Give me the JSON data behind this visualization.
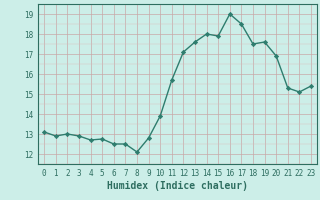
{
  "x": [
    0,
    1,
    2,
    3,
    4,
    5,
    6,
    7,
    8,
    9,
    10,
    11,
    12,
    13,
    14,
    15,
    16,
    17,
    18,
    19,
    20,
    21,
    22,
    23
  ],
  "y": [
    13.1,
    12.9,
    13.0,
    12.9,
    12.7,
    12.75,
    12.5,
    12.5,
    12.1,
    12.8,
    13.9,
    15.7,
    17.1,
    17.6,
    18.0,
    17.9,
    19.0,
    18.5,
    17.5,
    17.6,
    16.9,
    15.3,
    15.1,
    15.4
  ],
  "line_color": "#2e7d6e",
  "marker": "D",
  "markersize": 2.2,
  "linewidth": 1.0,
  "xlabel": "Humidex (Indice chaleur)",
  "xlabel_fontsize": 7,
  "bg_color": "#cceee8",
  "grid_major_color": "#c8a8a8",
  "grid_minor_color": "#dbbcbc",
  "xlim": [
    -0.5,
    23.5
  ],
  "ylim": [
    11.5,
    19.5
  ],
  "yticks": [
    12,
    13,
    14,
    15,
    16,
    17,
    18,
    19
  ],
  "xticks": [
    0,
    1,
    2,
    3,
    4,
    5,
    6,
    7,
    8,
    9,
    10,
    11,
    12,
    13,
    14,
    15,
    16,
    17,
    18,
    19,
    20,
    21,
    22,
    23
  ],
  "tick_label_fontsize": 5.5,
  "tick_color": "#2e6e60",
  "spine_color": "#2e6e60"
}
